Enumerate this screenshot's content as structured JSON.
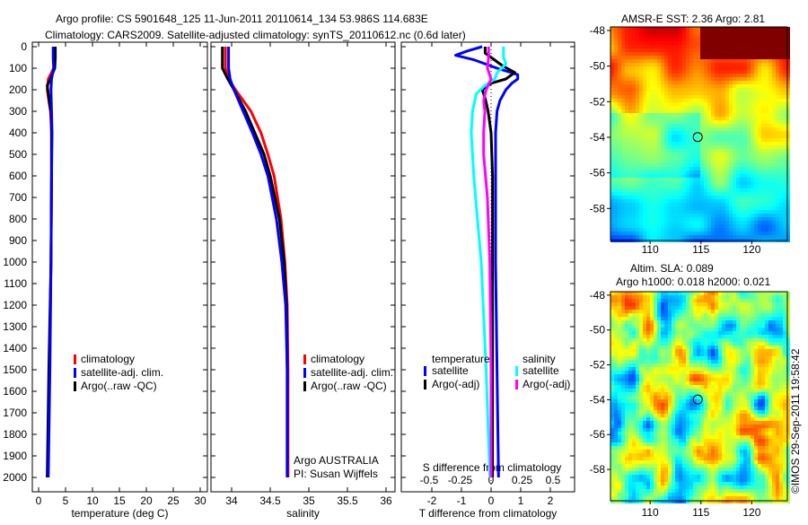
{
  "title_line1": "Argo profile: CS 5901648_125 11-Jun-2011 20110614_134 53.986S 114.683E",
  "title_line2": "Climatology: CARS2009. Satellite-adjusted climatology: synTS_20110612.nc (0.6d later)",
  "colors": {
    "climatology": "#ff0000",
    "satellite": "#0000ff",
    "argo": "#000000",
    "sal_satellite": "#00ffff",
    "sal_argo": "#ff00ff"
  },
  "chart_data": [
    {
      "type": "line",
      "panel": "temperature",
      "xlabel": "temperature (deg C)",
      "xlim": [
        -1,
        31
      ],
      "ylim": [
        2050,
        0
      ],
      "xticks": [
        "0",
        "5",
        "10",
        "15",
        "20",
        "25",
        "30"
      ],
      "xtick_values": [
        0,
        5,
        10,
        15,
        20,
        25,
        30
      ],
      "yticks": [
        "0",
        "100",
        "200",
        "300",
        "400",
        "500",
        "600",
        "700",
        "800",
        "900",
        "1000",
        "1100",
        "1200",
        "1300",
        "1400",
        "1500",
        "1600",
        "1700",
        "1800",
        "1900",
        "2000"
      ],
      "ytick_values": [
        0,
        100,
        200,
        300,
        400,
        500,
        600,
        700,
        800,
        900,
        1000,
        1100,
        1200,
        1300,
        1400,
        1500,
        1600,
        1700,
        1800,
        1900,
        2000
      ],
      "legend": [
        "climatology",
        "satellite-adj. clim.",
        "Argo(..raw -QC)"
      ],
      "series": [
        {
          "name": "climatology",
          "color": "#ff0000",
          "depth": [
            0,
            50,
            100,
            150,
            200,
            300,
            400,
            600,
            1000,
            1500,
            2000
          ],
          "values": [
            3.0,
            3.0,
            2.8,
            1.8,
            1.6,
            2.2,
            2.4,
            2.4,
            2.3,
            2.0,
            1.7
          ]
        },
        {
          "name": "Argo",
          "color": "#000000",
          "depth": [
            0,
            50,
            100,
            150,
            180,
            220,
            260,
            300,
            350,
            400,
            600,
            1000,
            1500,
            2000
          ],
          "values": [
            3.1,
            3.1,
            3.0,
            2.2,
            1.6,
            1.8,
            2.0,
            2.3,
            2.4,
            2.4,
            2.4,
            2.3,
            1.9,
            1.6
          ]
        },
        {
          "name": "satellite-adj. clim.",
          "color": "#0000ff",
          "depth": [
            0,
            50,
            100,
            150,
            200,
            300,
            400,
            600,
            1000,
            1500,
            2000
          ],
          "values": [
            2.7,
            2.7,
            2.8,
            2.4,
            2.3,
            2.4,
            2.5,
            2.4,
            2.3,
            2.1,
            1.8
          ]
        }
      ]
    },
    {
      "type": "line",
      "panel": "salinity",
      "xlabel": "salinity",
      "xlim": [
        33.8,
        36.05
      ],
      "ylim": [
        2050,
        0
      ],
      "xticks": [
        "34",
        "34.5",
        "35",
        "35.5",
        "36"
      ],
      "xtick_values": [
        34,
        34.5,
        35,
        35.5,
        36
      ],
      "legend": [
        "climatology",
        "satellite-adj. clim.",
        "Argo(..raw -QC)"
      ],
      "annotation": [
        "Argo AUSTRALIA",
        "PI: Susan Wijffels"
      ],
      "series": [
        {
          "name": "climatology",
          "color": "#ff0000",
          "depth": [
            0,
            100,
            150,
            200,
            300,
            400,
            500,
            600,
            800,
            1000,
            1200,
            1500,
            2000
          ],
          "values": [
            33.92,
            33.92,
            33.96,
            34.05,
            34.25,
            34.38,
            34.47,
            34.55,
            34.64,
            34.69,
            34.72,
            34.73,
            34.73
          ]
        },
        {
          "name": "Argo",
          "color": "#000000",
          "depth": [
            0,
            100,
            150,
            200,
            300,
            400,
            500,
            600,
            800,
            1000,
            1200,
            1500,
            2000
          ],
          "values": [
            33.88,
            33.88,
            33.95,
            34.03,
            34.18,
            34.3,
            34.42,
            34.5,
            34.62,
            34.68,
            34.71,
            34.72,
            34.72
          ]
        },
        {
          "name": "satellite-adj. clim.",
          "color": "#0000ff",
          "depth": [
            0,
            100,
            150,
            200,
            300,
            400,
            500,
            600,
            800,
            1000,
            1200,
            1500,
            2000
          ],
          "values": [
            33.96,
            33.96,
            33.98,
            34.03,
            34.15,
            34.27,
            34.38,
            34.47,
            34.58,
            34.65,
            34.7,
            34.72,
            34.72
          ]
        }
      ]
    },
    {
      "type": "line",
      "panel": "difference",
      "xlabel": "T difference from climatology",
      "xlabel2": "S difference from climatology",
      "xlim": [
        -3,
        3
      ],
      "ylim": [
        2050,
        0
      ],
      "xticks": [
        "-2",
        "-1",
        "0",
        "1",
        "2"
      ],
      "xtick_values": [
        -2,
        -1,
        0,
        1,
        2
      ],
      "xticks2": [
        "-0.5",
        "-0.25",
        "0",
        "0.25",
        "0.5"
      ],
      "xtick2_values": [
        -0.5,
        -0.25,
        0,
        0.25,
        0.5
      ],
      "legend_temperature": {
        "title": "temperature",
        "items": [
          "satellite",
          "Argo(-adj)"
        ]
      },
      "legend_salinity": {
        "title": "salinity",
        "items": [
          "satellite",
          "Argo(-adj)"
        ]
      },
      "series": [
        {
          "name": "T satellite",
          "color": "#0000ff",
          "axis": "T",
          "depth": [
            0,
            20,
            40,
            60,
            100,
            130,
            150,
            170,
            200,
            250,
            300,
            400,
            600,
            1000,
            1500,
            2000
          ],
          "values": [
            -0.3,
            -0.8,
            -1.2,
            -0.6,
            0.2,
            0.9,
            0.9,
            0.7,
            0.5,
            0.3,
            0.2,
            0.15,
            0.15,
            0.15,
            0.2,
            0.25
          ]
        },
        {
          "name": "T Argo",
          "color": "#000000",
          "axis": "T",
          "depth": [
            0,
            30,
            60,
            90,
            120,
            150,
            170,
            200,
            240,
            300,
            400,
            600,
            1000,
            1500,
            2000
          ],
          "values": [
            -0.2,
            -0.2,
            0.1,
            0.4,
            0.8,
            0.5,
            0.0,
            -0.3,
            -0.2,
            -0.1,
            0.0,
            0.05,
            0.05,
            0.05,
            0.05
          ]
        },
        {
          "name": "S satellite",
          "color": "#00ffff",
          "axis": "S",
          "depth": [
            0,
            50,
            80,
            120,
            150,
            180,
            220,
            300,
            400,
            600,
            800,
            1000,
            1500,
            2000
          ],
          "values": [
            0.1,
            0.1,
            0.12,
            0.05,
            0.03,
            -0.05,
            -0.12,
            -0.15,
            -0.16,
            -0.14,
            -0.11,
            -0.08,
            -0.04,
            -0.01
          ]
        },
        {
          "name": "S Argo",
          "color": "#ff00ff",
          "axis": "S",
          "depth": [
            0,
            50,
            100,
            150,
            200,
            250,
            300,
            400,
            500,
            700,
            1000,
            1500,
            2000
          ],
          "values": [
            -0.02,
            -0.02,
            -0.03,
            0.0,
            -0.04,
            -0.06,
            -0.05,
            -0.06,
            -0.06,
            -0.03,
            -0.01,
            0.0,
            0.0
          ]
        }
      ]
    }
  ],
  "map_sst": {
    "title": "AMSR-E SST: 2.36  Argo: 2.81",
    "xticks": [
      "110",
      "115",
      "120"
    ],
    "xtick_values": [
      110,
      115,
      120
    ],
    "yticks": [
      "-48",
      "-50",
      "-52",
      "-54",
      "-56",
      "-58"
    ],
    "ytick_values": [
      -48,
      -50,
      -52,
      -54,
      -56,
      -58
    ],
    "lon_range": [
      106.1,
      123.5
    ],
    "lat_range": [
      -59.8,
      -47.8
    ],
    "profile_lon": 114.683,
    "profile_lat": -53.986
  },
  "map_sla": {
    "title_line1": "Altim. SLA: 0.089",
    "title_line2": "Argo h1000: 0.018 h2000: 0.021",
    "xticks": [
      "110",
      "115",
      "120"
    ],
    "xtick_values": [
      110,
      115,
      120
    ],
    "yticks": [
      "-48",
      "-50",
      "-52",
      "-54",
      "-56",
      "-58"
    ],
    "ytick_values": [
      -48,
      -50,
      -52,
      -54,
      -56,
      -58
    ],
    "lon_range": [
      106.1,
      123.5
    ],
    "lat_range": [
      -59.8,
      -47.8
    ],
    "profile_lon": 114.683,
    "profile_lat": -53.986
  },
  "credit": "©IMOS 29-Sep-2011 19:58:42"
}
